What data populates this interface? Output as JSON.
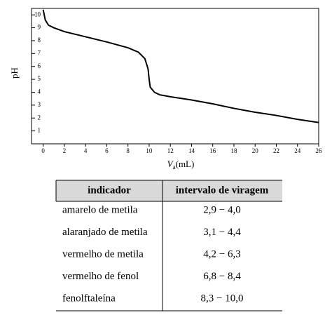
{
  "chart_data": {
    "type": "line",
    "ylabel": "pH",
    "xlabel": [
      "V",
      "a",
      "(mL)"
    ],
    "x": [
      0,
      0.2,
      0.5,
      1,
      2,
      4,
      6,
      8,
      9,
      9.6,
      9.9,
      10,
      10.1,
      10.5,
      11,
      12,
      14,
      16,
      18,
      20,
      22,
      24,
      26
    ],
    "series": [
      {
        "color": "#000000",
        "values": [
          10.4,
          9.6,
          9.2,
          9.0,
          8.7,
          8.3,
          7.9,
          7.45,
          7.1,
          6.6,
          5.8,
          5.0,
          4.4,
          4.0,
          3.8,
          3.65,
          3.4,
          3.1,
          2.75,
          2.45,
          2.2,
          1.9,
          1.65
        ]
      }
    ],
    "xlim": [
      -1.1,
      26
    ],
    "ylim": [
      0,
      10.5
    ],
    "xticks": [
      0,
      2,
      4,
      6,
      8,
      10,
      12,
      14,
      16,
      18,
      20,
      22,
      24,
      26
    ],
    "yticks": [
      1,
      2,
      3,
      4,
      5,
      6,
      7,
      8,
      9,
      10
    ],
    "grid": false
  },
  "table": {
    "header": [
      "indicador",
      "intervalo de viragem"
    ],
    "rows": [
      [
        "amarelo de metila",
        "2,9 − 4,0"
      ],
      [
        "alaranjado de metila",
        "3,1 − 4,4"
      ],
      [
        "vermelho de metila",
        "4,2 − 6,3"
      ],
      [
        "vermelho de fenol",
        "6,8 − 8,4"
      ],
      [
        "fenolftaleína",
        "8,3 − 10,0"
      ]
    ]
  }
}
